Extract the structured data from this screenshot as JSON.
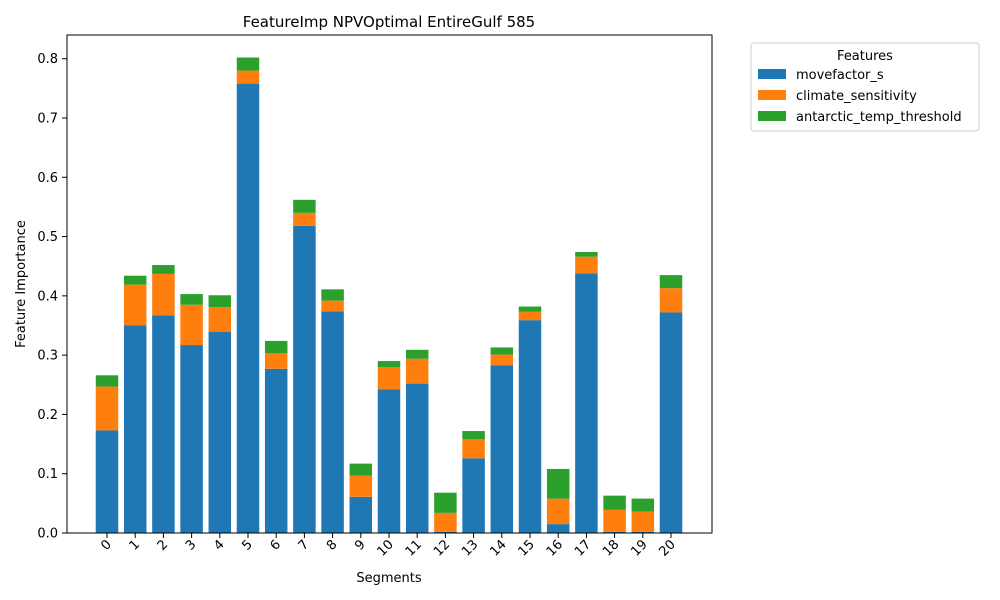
{
  "chart_data": {
    "type": "bar",
    "stacked": true,
    "title": "FeatureImp NPVOptimal EntireGulf 585",
    "xlabel": "Segments",
    "ylabel": "Feature Importance",
    "ylim": [
      0,
      0.84
    ],
    "yticks": [
      "0.0",
      "0.1",
      "0.2",
      "0.3",
      "0.4",
      "0.5",
      "0.6",
      "0.7",
      "0.8"
    ],
    "categories": [
      "0",
      "1",
      "2",
      "3",
      "4",
      "5",
      "6",
      "7",
      "8",
      "9",
      "10",
      "11",
      "12",
      "13",
      "14",
      "15",
      "16",
      "17",
      "18",
      "19",
      "20"
    ],
    "legend": {
      "title": "Features",
      "placement": "outside-top-right"
    },
    "grid": false,
    "series": [
      {
        "name": "movefactor_s",
        "color": "#1f77b4",
        "values": [
          0.173,
          0.35,
          0.367,
          0.317,
          0.339,
          0.758,
          0.277,
          0.518,
          0.374,
          0.061,
          0.242,
          0.252,
          0.002,
          0.126,
          0.283,
          0.359,
          0.015,
          0.438,
          0.002,
          0.002,
          0.372
        ]
      },
      {
        "name": "climate_sensitivity",
        "color": "#ff7f0e",
        "values": [
          0.074,
          0.069,
          0.07,
          0.068,
          0.042,
          0.022,
          0.026,
          0.022,
          0.018,
          0.036,
          0.038,
          0.042,
          0.032,
          0.032,
          0.018,
          0.014,
          0.043,
          0.028,
          0.037,
          0.034,
          0.041
        ]
      },
      {
        "name": "antarctic_temp_threshold",
        "color": "#2ca02c",
        "values": [
          0.019,
          0.015,
          0.015,
          0.018,
          0.02,
          0.022,
          0.021,
          0.022,
          0.019,
          0.02,
          0.01,
          0.015,
          0.034,
          0.014,
          0.012,
          0.009,
          0.05,
          0.008,
          0.024,
          0.022,
          0.022
        ]
      }
    ]
  }
}
